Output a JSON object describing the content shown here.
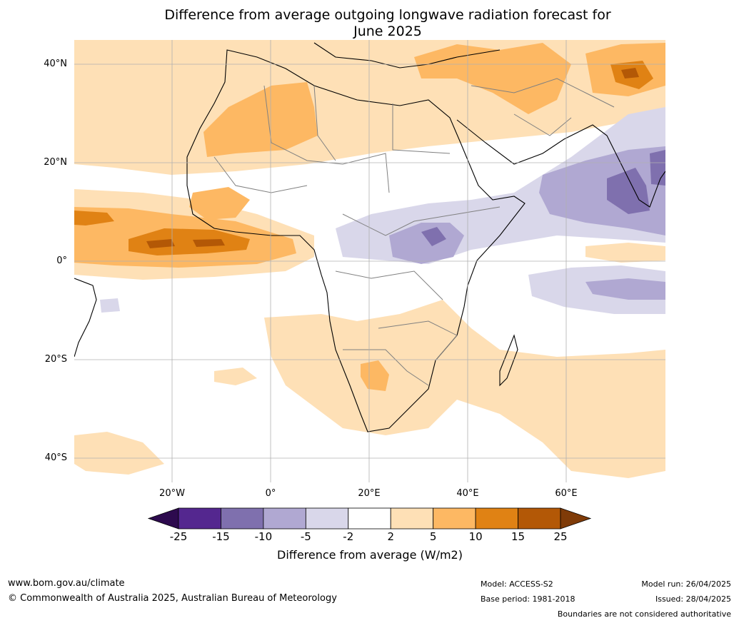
{
  "title_line1": "Difference from average outgoing longwave radiation forecast for",
  "title_line2": "June 2025",
  "lat_labels": [
    "40°N",
    "20°N",
    "0°",
    "20°S",
    "40°S"
  ],
  "lon_labels": [
    "20°W",
    "0°",
    "20°E",
    "40°E",
    "60°E"
  ],
  "colorbar": {
    "label": "Difference from average (W/m2)",
    "ticks": [
      "-25",
      "-15",
      "-10",
      "-5",
      "-2",
      "2",
      "5",
      "10",
      "15",
      "25"
    ],
    "colors": [
      "#2d0a4e",
      "#54278f",
      "#7f70ae",
      "#b0a8d2",
      "#d9d7ea",
      "#ffffff",
      "#fee0b6",
      "#fdb863",
      "#e08214",
      "#b35806",
      "#7f3b08"
    ]
  },
  "footer": {
    "url": "www.bom.gov.au/climate",
    "copyright": "© Commonwealth of Australia 2025, Australian Bureau of Meteorology",
    "model": "Model: ACCESS-S2",
    "base_period": "Base period: 1981-2018",
    "model_run": "Model run: 26/04/2025",
    "issued": "Issued: 28/04/2025",
    "disclaimer": "Boundaries are not considered authoritative"
  }
}
